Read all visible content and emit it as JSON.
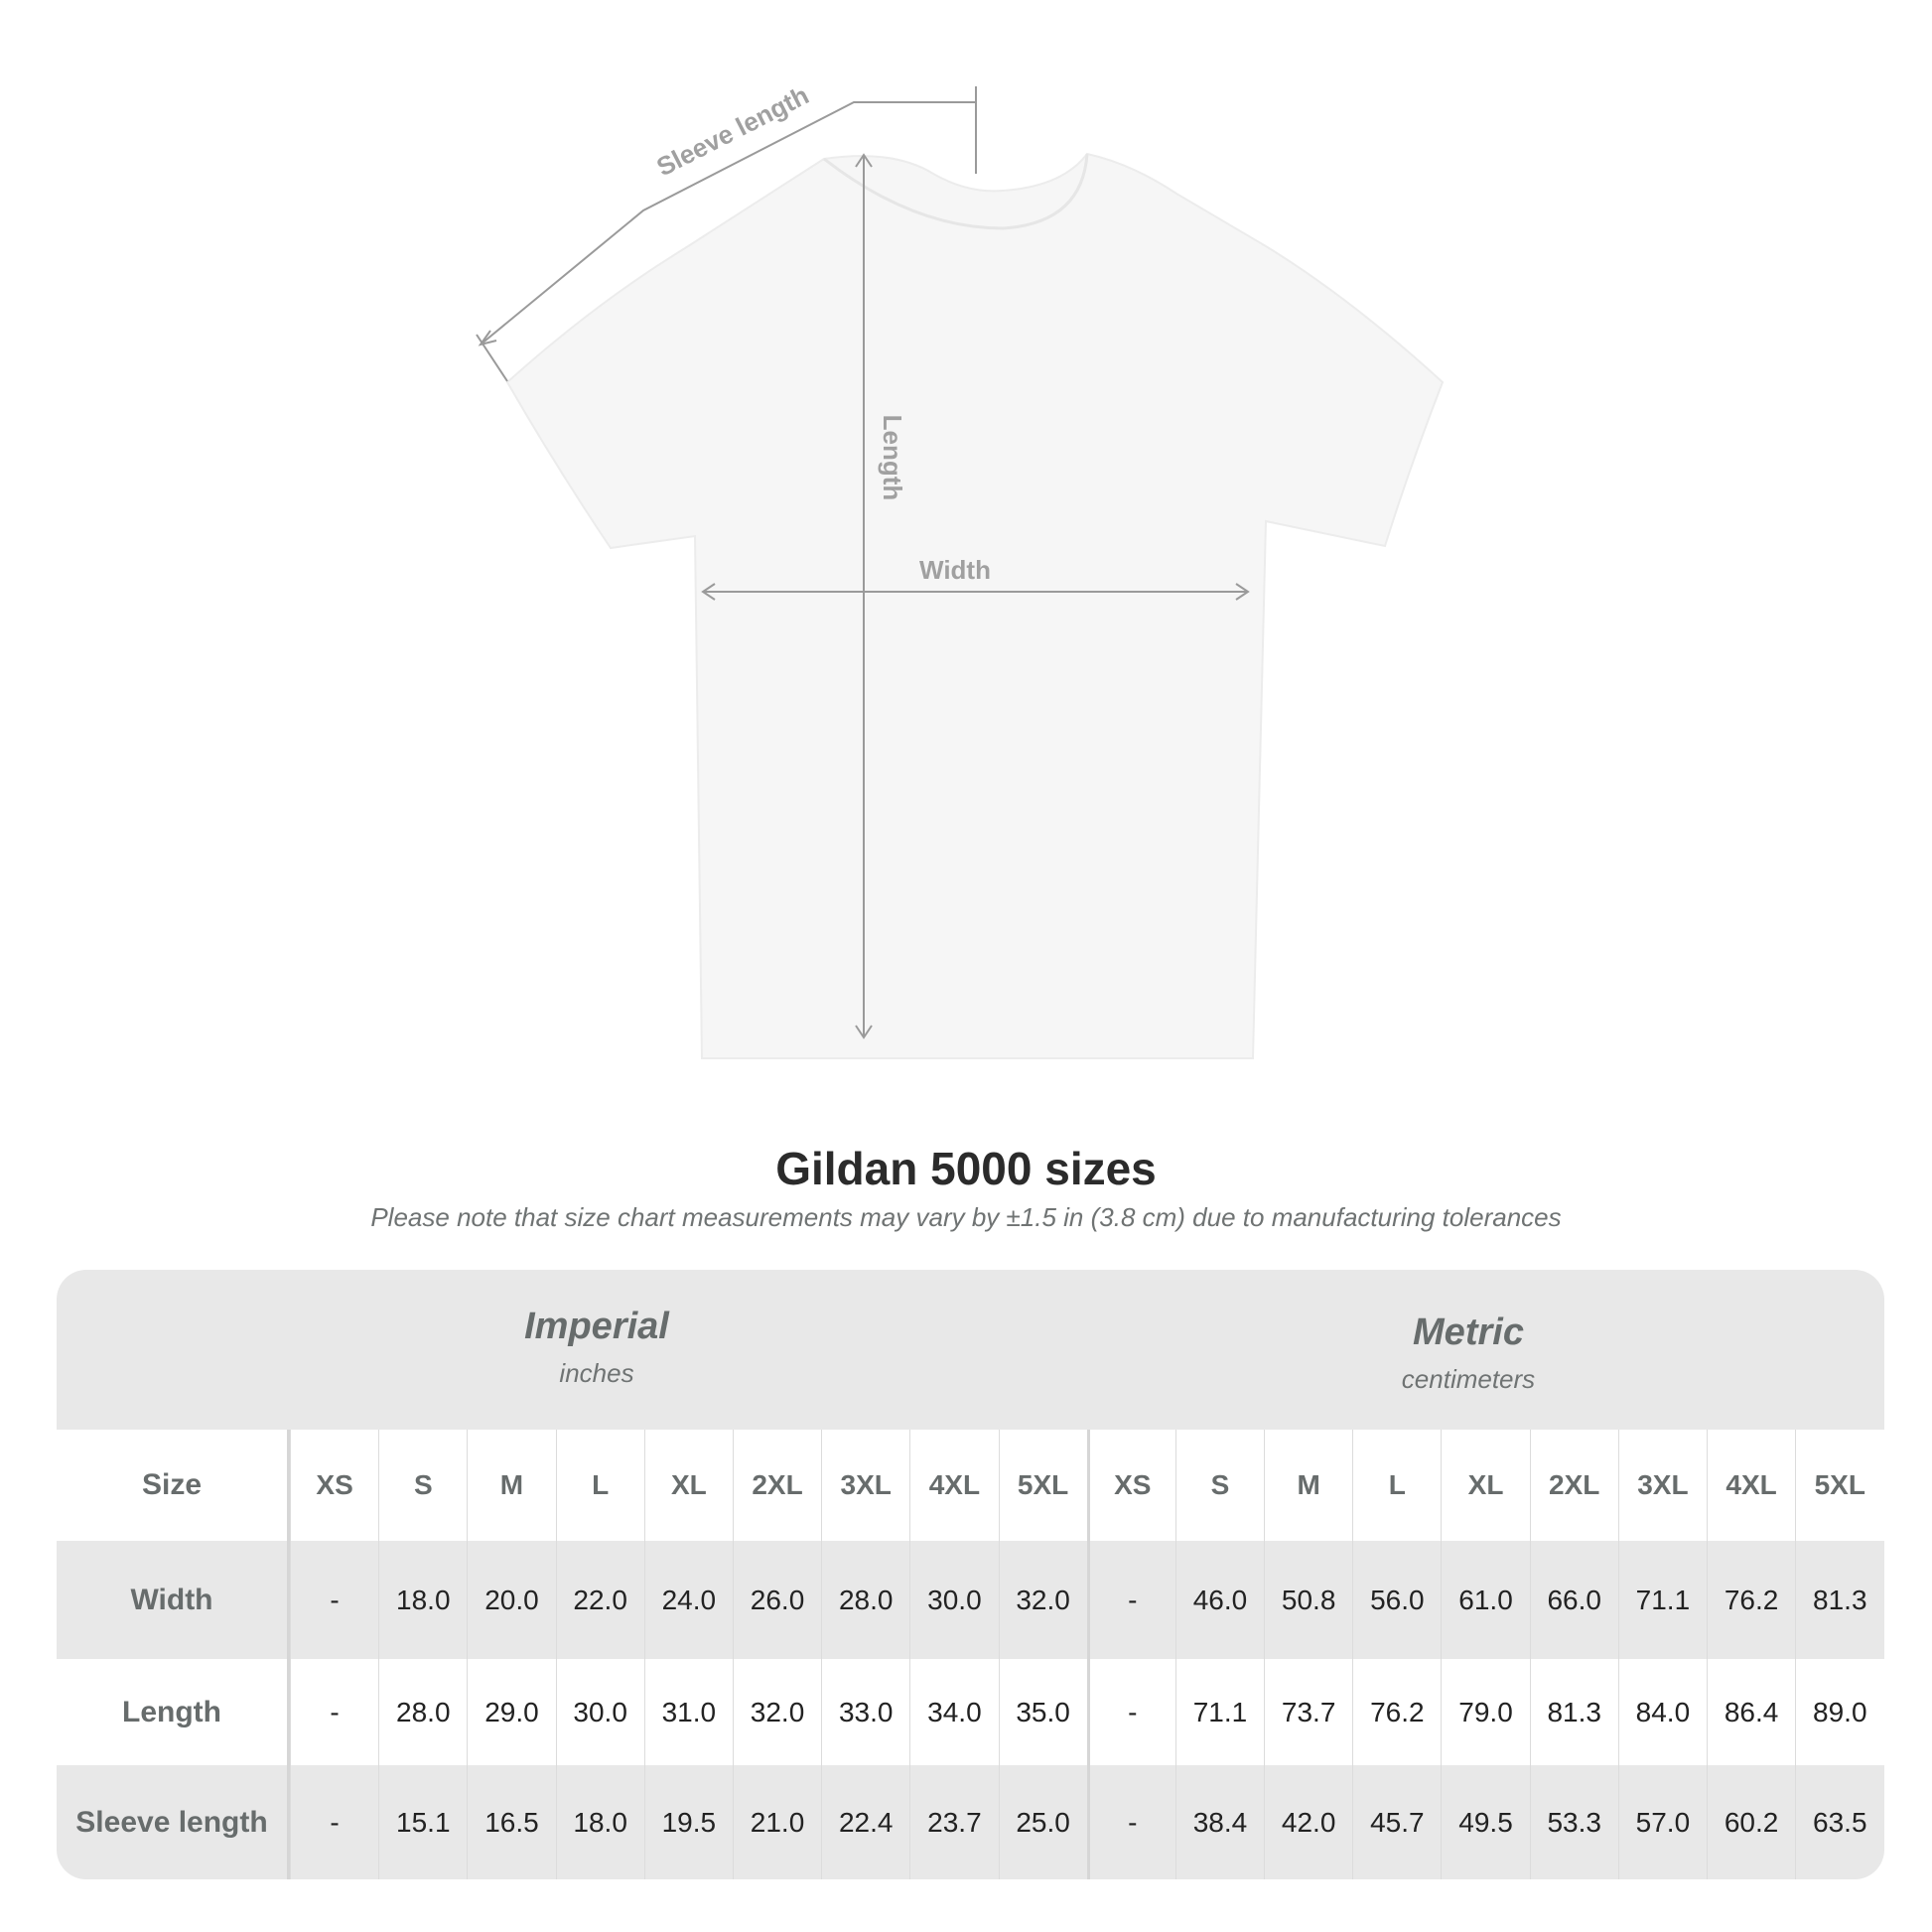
{
  "diagram": {
    "labels": {
      "sleeve": "Sleeve length",
      "length": "Length",
      "width": "Width"
    }
  },
  "title": "Gildan 5000 sizes",
  "note": "Please note that size chart measurements may vary by ±1.5 in (3.8 cm) due to manufacturing tolerances",
  "table": {
    "imperial": {
      "name": "Imperial",
      "unit": "inches"
    },
    "metric": {
      "name": "Metric",
      "unit": "centimeters"
    },
    "size_label": "Size",
    "sizes": [
      "XS",
      "S",
      "M",
      "L",
      "XL",
      "2XL",
      "3XL",
      "4XL",
      "5XL"
    ],
    "rows": [
      {
        "label": "Width",
        "imperial": [
          "-",
          "18.0",
          "20.0",
          "22.0",
          "24.0",
          "26.0",
          "28.0",
          "30.0",
          "32.0"
        ],
        "metric": [
          "-",
          "46.0",
          "50.8",
          "56.0",
          "61.0",
          "66.0",
          "71.1",
          "76.2",
          "81.3"
        ]
      },
      {
        "label": "Length",
        "imperial": [
          "-",
          "28.0",
          "29.0",
          "30.0",
          "31.0",
          "32.0",
          "33.0",
          "34.0",
          "35.0"
        ],
        "metric": [
          "-",
          "71.1",
          "73.7",
          "76.2",
          "79.0",
          "81.3",
          "84.0",
          "86.4",
          "89.0"
        ]
      },
      {
        "label": "Sleeve length",
        "imperial": [
          "-",
          "15.1",
          "16.5",
          "18.0",
          "19.5",
          "21.0",
          "22.4",
          "23.7",
          "25.0"
        ],
        "metric": [
          "-",
          "38.4",
          "42.0",
          "45.7",
          "49.5",
          "53.3",
          "57.0",
          "60.2",
          "63.5"
        ]
      }
    ]
  },
  "colors": {
    "table_bg": "#e8e8e8",
    "header_text": "#676c6c",
    "value_text": "#222222",
    "guide_lines": "#9a9a9a"
  }
}
